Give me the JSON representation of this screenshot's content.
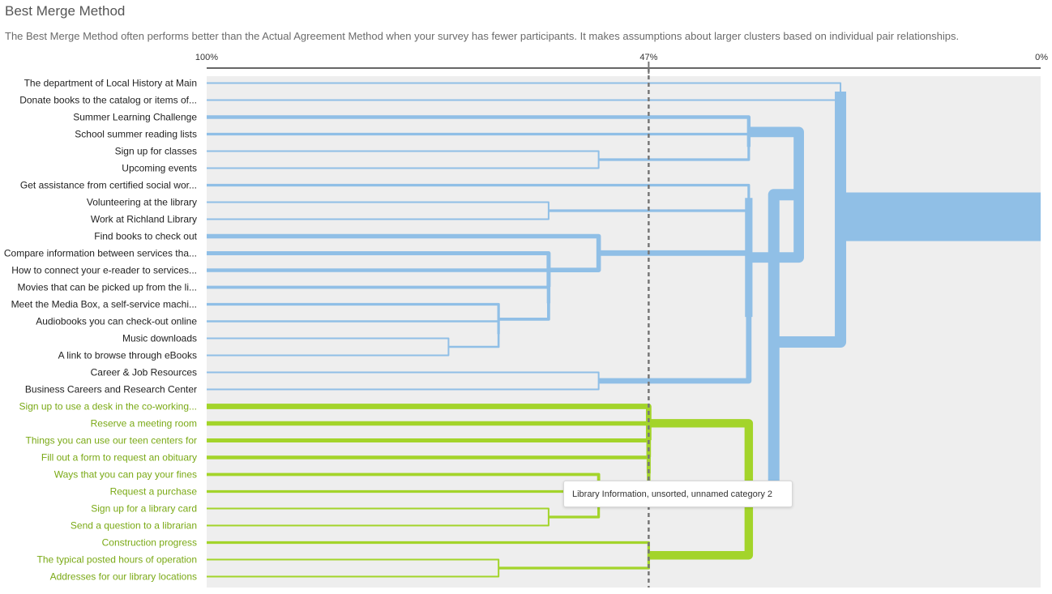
{
  "header": {
    "title": "Best Merge Method",
    "subtitle": "The Best Merge Method often performs better than the Actual Agreement Method when your survey has fewer participants. It makes assumptions about larger clusters based on individual pair relationships."
  },
  "tooltip": {
    "text": "Library Information, unsorted, unnamed category 2"
  },
  "colors": {
    "blue": "#90bfe6",
    "green": "#a3d42a",
    "green_text": "#7aa915",
    "plot_bg": "#eeeeee",
    "axis": "#666666",
    "threshold": "#777777"
  },
  "chart_data": {
    "type": "dendrogram",
    "axis": {
      "ticks": [
        "100%",
        "47%",
        "0%"
      ],
      "tick_values": [
        100,
        47,
        0
      ],
      "range": [
        100,
        0
      ]
    },
    "threshold": 47,
    "leaves": [
      {
        "label": "The department of Local History at Main",
        "cluster": "blue"
      },
      {
        "label": "Donate books to the catalog or items of...",
        "cluster": "blue"
      },
      {
        "label": "Summer Learning Challenge",
        "cluster": "blue"
      },
      {
        "label": "School summer reading lists",
        "cluster": "blue"
      },
      {
        "label": "Sign up for classes",
        "cluster": "blue"
      },
      {
        "label": "Upcoming events",
        "cluster": "blue"
      },
      {
        "label": "Get assistance from certified social wor...",
        "cluster": "blue"
      },
      {
        "label": "Volunteering at the library",
        "cluster": "blue"
      },
      {
        "label": "Work at Richland Library",
        "cluster": "blue"
      },
      {
        "label": "Find books to check out",
        "cluster": "blue"
      },
      {
        "label": "Compare information between services tha...",
        "cluster": "blue"
      },
      {
        "label": "How to connect your e-reader to services...",
        "cluster": "blue"
      },
      {
        "label": "Movies that can be picked up from the li...",
        "cluster": "blue"
      },
      {
        "label": "Meet the Media Box, a self-service machi...",
        "cluster": "blue"
      },
      {
        "label": "Audiobooks you can check-out online",
        "cluster": "blue"
      },
      {
        "label": "Music downloads",
        "cluster": "blue"
      },
      {
        "label": "A link to browse through eBooks",
        "cluster": "blue"
      },
      {
        "label": "Career & Job Resources",
        "cluster": "blue"
      },
      {
        "label": "Business Careers and Research Center",
        "cluster": "blue"
      },
      {
        "label": "Sign up to use a desk in the co-working...",
        "cluster": "green"
      },
      {
        "label": "Reserve a meeting room",
        "cluster": "green"
      },
      {
        "label": "Things you can use our teen centers for",
        "cluster": "green"
      },
      {
        "label": "Fill out a form to request an obituary",
        "cluster": "green"
      },
      {
        "label": "Ways that you can pay your fines",
        "cluster": "green"
      },
      {
        "label": "Request a purchase",
        "cluster": "green"
      },
      {
        "label": "Sign up for a library card",
        "cluster": "green"
      },
      {
        "label": "Send a question to a librarian",
        "cluster": "green"
      },
      {
        "label": "Construction progress",
        "cluster": "green"
      },
      {
        "label": "The typical posted hours of operation",
        "cluster": "green"
      },
      {
        "label": "Addresses for our library locations",
        "cluster": "green"
      }
    ],
    "merges": [
      {
        "id": "b1",
        "children": [
          "L4",
          "L5"
        ],
        "value": 53,
        "weight": 1
      },
      {
        "id": "b2",
        "children": [
          "L3",
          "b1"
        ],
        "value": 35,
        "weight": 2
      },
      {
        "id": "b3",
        "children": [
          "L2",
          "b2"
        ],
        "value": 35,
        "weight": 3
      },
      {
        "id": "b4",
        "children": [
          "L7",
          "L8"
        ],
        "value": 59,
        "weight": 1
      },
      {
        "id": "b5",
        "children": [
          "L15",
          "L16"
        ],
        "value": 71,
        "weight": 1
      },
      {
        "id": "b6",
        "children": [
          "L14",
          "b5"
        ],
        "value": 65,
        "weight": 1.5
      },
      {
        "id": "b7",
        "children": [
          "L13",
          "b6"
        ],
        "value": 65,
        "weight": 2
      },
      {
        "id": "b8",
        "children": [
          "L12",
          "b7"
        ],
        "value": 59,
        "weight": 2.5
      },
      {
        "id": "b9",
        "children": [
          "L11",
          "b8"
        ],
        "value": 59,
        "weight": 3
      },
      {
        "id": "b10",
        "children": [
          "L10",
          "b9"
        ],
        "value": 59,
        "weight": 3.5
      },
      {
        "id": "b11",
        "children": [
          "L9",
          "b10"
        ],
        "value": 53,
        "weight": 4
      },
      {
        "id": "b12",
        "children": [
          "L17",
          "L18"
        ],
        "value": 53,
        "weight": 1
      },
      {
        "id": "b13",
        "children": [
          "b11",
          "b12"
        ],
        "value": 35,
        "weight": 5
      },
      {
        "id": "b14",
        "children": [
          "L6",
          "b4"
        ],
        "value": 35,
        "weight": 2
      },
      {
        "id": "b15",
        "children": [
          "b14",
          "b13"
        ],
        "value": 35,
        "weight": 7
      },
      {
        "id": "b16",
        "children": [
          "b3",
          "b15"
        ],
        "value": 29,
        "weight": 10
      },
      {
        "id": "b17",
        "children": [
          "L0",
          "L1"
        ],
        "value": 24,
        "weight": 1
      },
      {
        "id": "g1",
        "children": [
          "L28",
          "L29"
        ],
        "value": 65,
        "weight": 1
      },
      {
        "id": "g2",
        "children": [
          "L27",
          "g1"
        ],
        "value": 47,
        "weight": 2
      },
      {
        "id": "g3",
        "children": [
          "L25",
          "L26"
        ],
        "value": 59,
        "weight": 1
      },
      {
        "id": "g4",
        "children": [
          "L24",
          "g3"
        ],
        "value": 53,
        "weight": 2
      },
      {
        "id": "g5",
        "children": [
          "L23",
          "g4"
        ],
        "value": 53,
        "weight": 2.5
      },
      {
        "id": "g6",
        "children": [
          "L22",
          "g5"
        ],
        "value": 47,
        "weight": 3
      },
      {
        "id": "g7",
        "children": [
          "L21",
          "g6"
        ],
        "value": 47,
        "weight": 3.5
      },
      {
        "id": "g8",
        "children": [
          "L20",
          "g7"
        ],
        "value": 47,
        "weight": 4
      },
      {
        "id": "g9",
        "children": [
          "L19",
          "g8"
        ],
        "value": 47,
        "weight": 5
      },
      {
        "id": "g10",
        "children": [
          "g9",
          "g2"
        ],
        "value": 35,
        "weight": 8
      },
      {
        "id": "r1",
        "children": [
          "b16",
          "g10"
        ],
        "value": 32,
        "weight": 14
      },
      {
        "id": "r2",
        "children": [
          "b17",
          "r1"
        ],
        "value": 24,
        "weight": 22
      }
    ]
  }
}
